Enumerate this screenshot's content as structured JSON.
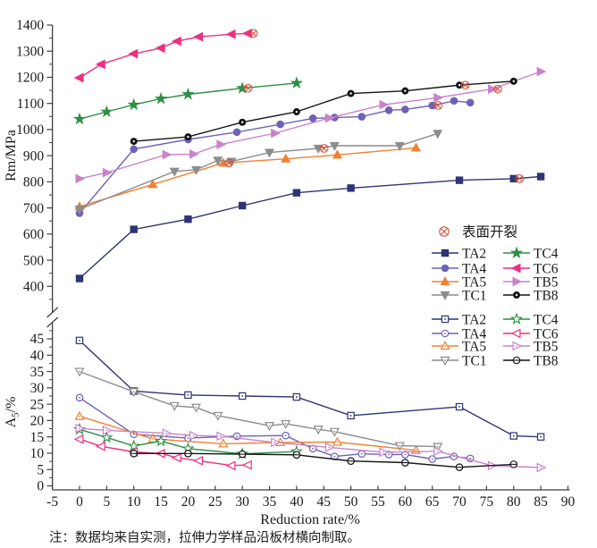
{
  "note": "注：数据均来自实测，拉伸力学样品沿板材横向制取。",
  "chart_data": {
    "type": "line",
    "xlabel": "Reduction rate/%",
    "xlim": [
      -5,
      90
    ],
    "xtick_step": 5,
    "grid": false,
    "crack_legend_label": "表面开裂",
    "crack_color": "#d9553f",
    "legend_columns": [
      [
        "TA2",
        "TA4",
        "TA5",
        "TC1"
      ],
      [
        "TC4",
        "TC6",
        "TB5",
        "TB8"
      ]
    ],
    "panels": [
      {
        "id": "top",
        "ylabel": "Rm/MPa",
        "ylim": [
          400,
          1400
        ],
        "ytick_step": 100,
        "marker_style": "filled",
        "series": [
          {
            "name": "TA2",
            "color": "#2f3474",
            "marker": "square",
            "points": [
              [
                0,
                430
              ],
              [
                10,
                618
              ],
              [
                20,
                657
              ],
              [
                30,
                709
              ],
              [
                40,
                758
              ],
              [
                50,
                776
              ],
              [
                70,
                806
              ],
              [
                80,
                812
              ],
              [
                85,
                820
              ]
            ],
            "crack_x": [
              80
            ]
          },
          {
            "name": "TA4",
            "color": "#6e62b5",
            "marker": "circle",
            "points": [
              [
                0,
                680
              ],
              [
                10,
                925
              ],
              [
                20,
                962
              ],
              [
                29,
                990
              ],
              [
                37,
                1020
              ],
              [
                43,
                1043
              ],
              [
                47,
                1046
              ],
              [
                52,
                1049
              ],
              [
                57,
                1074
              ],
              [
                60,
                1077
              ],
              [
                65,
                1092
              ],
              [
                69,
                1110
              ],
              [
                72,
                1103
              ]
            ],
            "crack_x": [
              65
            ]
          },
          {
            "name": "TA5",
            "color": "#f08033",
            "marker": "triangle-up",
            "points": [
              [
                0,
                705
              ],
              [
                13.5,
                790
              ],
              [
                26.5,
                872
              ],
              [
                38,
                888
              ],
              [
                47.5,
                903
              ],
              [
                62,
                930
              ]
            ],
            "crack_x": [
              26.5
            ]
          },
          {
            "name": "TC1",
            "color": "#8c8c8c",
            "marker": "triangle-down",
            "points": [
              [
                0,
                695
              ],
              [
                17.5,
                840
              ],
              [
                21.5,
                846
              ],
              [
                25.5,
                882
              ],
              [
                28,
                878
              ],
              [
                35,
                912
              ],
              [
                44,
                928
              ],
              [
                47,
                938
              ],
              [
                59,
                938
              ],
              [
                66,
                985
              ]
            ],
            "crack_x": [
              44
            ]
          },
          {
            "name": "TC4",
            "color": "#2f8f45",
            "marker": "star",
            "points": [
              [
                0,
                1040
              ],
              [
                5,
                1068
              ],
              [
                10,
                1095
              ],
              [
                15,
                1118
              ],
              [
                20,
                1135
              ],
              [
                30,
                1158
              ],
              [
                40,
                1178
              ]
            ],
            "crack_x": [
              30
            ]
          },
          {
            "name": "TC6",
            "color": "#ee2f7f",
            "marker": "triangle-left",
            "points": [
              [
                0,
                1198
              ],
              [
                4,
                1250
              ],
              [
                10,
                1290
              ],
              [
                15,
                1312
              ],
              [
                18,
                1338
              ],
              [
                22,
                1355
              ],
              [
                28,
                1365
              ],
              [
                31,
                1368
              ]
            ],
            "crack_x": [
              31
            ]
          },
          {
            "name": "TB5",
            "color": "#c983c9",
            "marker": "triangle-right",
            "points": [
              [
                0,
                812
              ],
              [
                5,
                835
              ],
              [
                16,
                904
              ],
              [
                21,
                906
              ],
              [
                26,
                943
              ],
              [
                36,
                986
              ],
              [
                46,
                1044
              ],
              [
                56,
                1095
              ],
              [
                66,
                1122
              ],
              [
                76,
                1155
              ],
              [
                85,
                1222
              ]
            ],
            "crack_x": [
              76
            ]
          },
          {
            "name": "TB8",
            "color": "#141414",
            "marker": "circle-dot",
            "points": [
              [
                10,
                955
              ],
              [
                20,
                972
              ],
              [
                30,
                1028
              ],
              [
                40,
                1068
              ],
              [
                50,
                1138
              ],
              [
                60,
                1148
              ],
              [
                70,
                1170
              ],
              [
                80,
                1185
              ]
            ],
            "crack_x": [
              70
            ]
          }
        ]
      },
      {
        "id": "bottom",
        "ylabel": "A5/%",
        "ylim": [
          0,
          45
        ],
        "ytick_step": 5,
        "marker_style": "open",
        "series": [
          {
            "name": "TA2",
            "color": "#2f3474",
            "marker": "square",
            "points": [
              [
                0,
                44.5
              ],
              [
                10,
                29
              ],
              [
                20,
                27.8
              ],
              [
                30,
                27.5
              ],
              [
                40,
                27.2
              ],
              [
                50,
                21.5
              ],
              [
                70,
                24.2
              ],
              [
                80,
                15.3
              ],
              [
                85,
                15
              ]
            ]
          },
          {
            "name": "TA4",
            "color": "#6e62b5",
            "marker": "circle",
            "points": [
              [
                0,
                27
              ],
              [
                10,
                15.8
              ],
              [
                20,
                14.6
              ],
              [
                29,
                15.2
              ],
              [
                38,
                15.4
              ],
              [
                43,
                11.4
              ],
              [
                47,
                9
              ],
              [
                52,
                9.8
              ],
              [
                57,
                9.6
              ],
              [
                60,
                9.6
              ],
              [
                65,
                8.2
              ],
              [
                69,
                9
              ],
              [
                72,
                8.4
              ]
            ]
          },
          {
            "name": "TA5",
            "color": "#f08033",
            "marker": "triangle-up",
            "points": [
              [
                0,
                21.3
              ],
              [
                13.5,
                14.4
              ],
              [
                26.5,
                12.9
              ],
              [
                37,
                13.3
              ],
              [
                47.5,
                13.4
              ],
              [
                62,
                10.9
              ]
            ]
          },
          {
            "name": "TC1",
            "color": "#8c8c8c",
            "marker": "triangle-down",
            "points": [
              [
                0,
                35
              ],
              [
                10,
                28.8
              ],
              [
                17.5,
                24.5
              ],
              [
                21.5,
                24
              ],
              [
                25.5,
                21.5
              ],
              [
                35,
                18.4
              ],
              [
                38,
                19
              ],
              [
                44,
                17.3
              ],
              [
                47,
                16.6
              ],
              [
                59,
                12.3
              ],
              [
                66,
                12
              ]
            ]
          },
          {
            "name": "TC4",
            "color": "#2f8f45",
            "marker": "star",
            "points": [
              [
                0,
                17.3
              ],
              [
                5,
                14.8
              ],
              [
                10,
                12.2
              ],
              [
                15,
                13.7
              ],
              [
                20,
                11.4
              ],
              [
                30,
                9.8
              ],
              [
                40,
                10.5
              ]
            ]
          },
          {
            "name": "TC6",
            "color": "#ee2f7f",
            "marker": "triangle-left",
            "points": [
              [
                0,
                14.3
              ],
              [
                4,
                12.1
              ],
              [
                10,
                10.4
              ],
              [
                15,
                9.9
              ],
              [
                18,
                8.6
              ],
              [
                22,
                7.7
              ],
              [
                28,
                6.2
              ],
              [
                31,
                6.4
              ]
            ]
          },
          {
            "name": "TB5",
            "color": "#c983c9",
            "marker": "triangle-right",
            "points": [
              [
                0,
                17.6
              ],
              [
                5,
                17
              ],
              [
                16,
                16.1
              ],
              [
                21,
                15.4
              ],
              [
                26,
                15.2
              ],
              [
                36,
                13.3
              ],
              [
                46,
                11.8
              ],
              [
                56,
                10.3
              ],
              [
                66,
                10.6
              ],
              [
                76,
                6.2
              ],
              [
                85,
                5.6
              ]
            ]
          },
          {
            "name": "TB8",
            "color": "#141414",
            "marker": "circle-dot",
            "points": [
              [
                10,
                9.9
              ],
              [
                20,
                9.9
              ],
              [
                30,
                9.7
              ],
              [
                40,
                9.5
              ],
              [
                50,
                7.6
              ],
              [
                60,
                7.1
              ],
              [
                70,
                5.7
              ],
              [
                80,
                6.6
              ]
            ]
          }
        ]
      }
    ]
  }
}
